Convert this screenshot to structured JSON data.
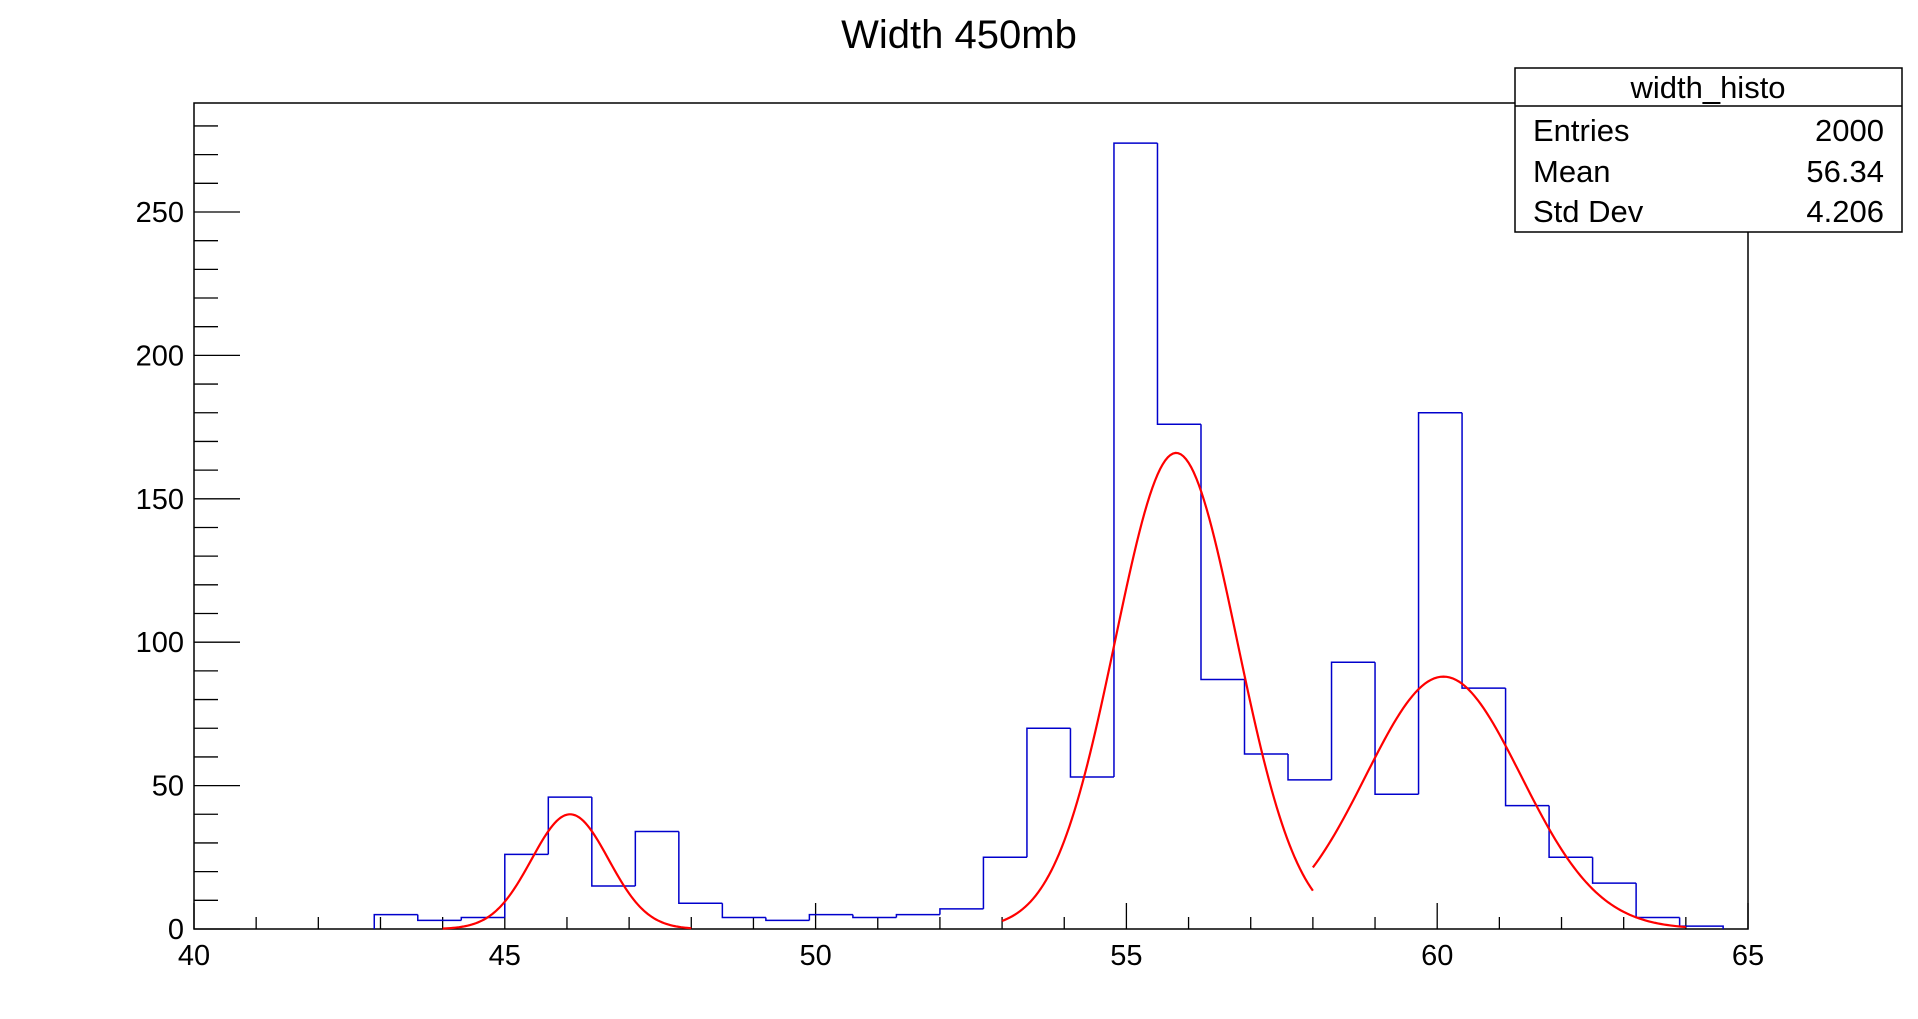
{
  "chart_data": {
    "type": "bar",
    "title": "Width 450mb",
    "xlabel": "",
    "ylabel": "",
    "xlim": [
      40,
      65
    ],
    "ylim": [
      0,
      288
    ],
    "x_ticks": [
      40,
      45,
      50,
      55,
      60,
      65
    ],
    "y_ticks": [
      0,
      50,
      100,
      150,
      200,
      250
    ],
    "grid": false,
    "histogram": {
      "name": "width_histo",
      "color": "#0000cc",
      "bin_edges": [
        42.9,
        43.6,
        44.3,
        45.0,
        45.7,
        46.4,
        47.1,
        47.8,
        48.5,
        49.2,
        49.9,
        50.6,
        51.3,
        52.0,
        52.7,
        53.4,
        54.1,
        54.8,
        55.5,
        56.2,
        56.9,
        57.6,
        58.3,
        59.0,
        59.7,
        60.4,
        61.1,
        61.8,
        62.5,
        63.2,
        63.9,
        64.6
      ],
      "counts": [
        5,
        3,
        4,
        26,
        46,
        15,
        34,
        9,
        4,
        3,
        5,
        4,
        5,
        7,
        25,
        70,
        53,
        274,
        176,
        87,
        61,
        52,
        93,
        47,
        180,
        84,
        43,
        25,
        16,
        4,
        1
      ]
    },
    "fits": [
      {
        "color": "#ff0000",
        "amplitude": 40,
        "mean": 46.05,
        "sigma": 0.62,
        "x_range": [
          44.0,
          48.0
        ]
      },
      {
        "color": "#ff0000",
        "amplitude": 166,
        "mean": 55.8,
        "sigma": 0.98,
        "x_range": [
          53.0,
          58.0
        ]
      },
      {
        "color": "#ff0000",
        "amplitude": 88,
        "mean": 60.1,
        "sigma": 1.25,
        "x_range": [
          58.0,
          64.0
        ]
      }
    ]
  },
  "stats_box": {
    "title": "width_histo",
    "rows": [
      {
        "label": "Entries",
        "value": "2000"
      },
      {
        "label": "Mean",
        "value": "56.34"
      },
      {
        "label": "Std Dev",
        "value": "4.206"
      }
    ]
  }
}
